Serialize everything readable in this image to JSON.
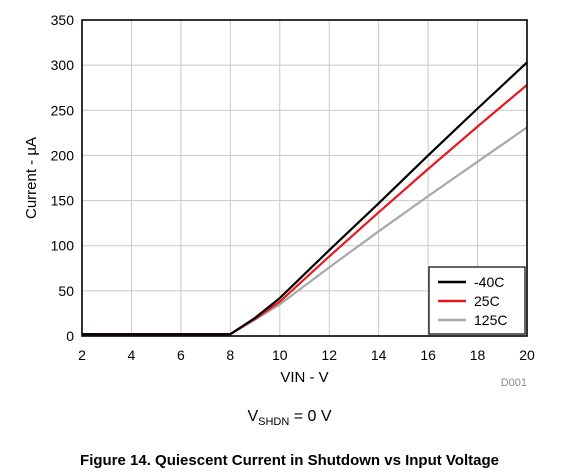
{
  "chart_data": {
    "type": "line",
    "xlabel": "VIN - V",
    "ylabel": "Current - µA",
    "xlim": [
      2,
      20
    ],
    "ylim": [
      0,
      350
    ],
    "xticks": [
      "2",
      "4",
      "6",
      "8",
      "10",
      "12",
      "14",
      "16",
      "18",
      "20"
    ],
    "yticks": [
      "0",
      "50",
      "100",
      "150",
      "200",
      "250",
      "300",
      "350"
    ],
    "grid": true,
    "legend_position": "bottom-right",
    "series": [
      {
        "name": "-40C",
        "color": "#000000",
        "x": [
          2,
          8,
          9,
          10,
          12,
          14,
          16,
          18,
          20
        ],
        "y": [
          2,
          2,
          20,
          42,
          95,
          147,
          200,
          252,
          303
        ]
      },
      {
        "name": "25C",
        "color": "#e8191d",
        "x": [
          2,
          8,
          9,
          10,
          12,
          14,
          16,
          18,
          20
        ],
        "y": [
          2,
          2,
          19,
          38,
          88,
          137,
          185,
          232,
          278
        ]
      },
      {
        "name": "125C",
        "color": "#a8a8a8",
        "x": [
          2,
          8,
          9,
          10,
          12,
          14,
          16,
          18,
          20
        ],
        "y": [
          2,
          2,
          18,
          35,
          76,
          116,
          155,
          193,
          231
        ]
      }
    ],
    "doc_id": "D001"
  },
  "condition": {
    "symbol": "V",
    "subscript": "SHDN",
    "rest": " = 0 V"
  },
  "caption": "Figure 14. Quiescent Current in Shutdown vs Input Voltage"
}
